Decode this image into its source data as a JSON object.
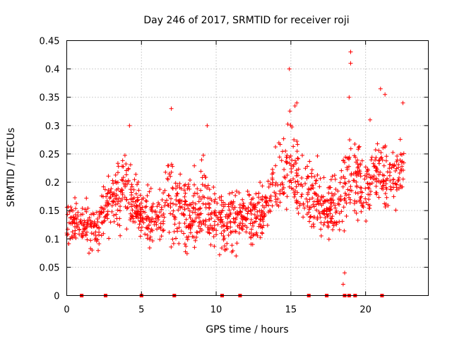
{
  "chart_data": {
    "type": "scatter",
    "title": "Day 246 of 2017, SRMTID for receiver roji",
    "xlabel": "GPS time / hours",
    "ylabel": "SRMTID / TECUs",
    "xlim": [
      0,
      24.2
    ],
    "ylim": [
      0,
      0.45
    ],
    "xticks": [
      0,
      5,
      10,
      15,
      20
    ],
    "yticks": [
      0,
      0.05,
      0.1,
      0.15,
      0.2,
      0.25,
      0.3,
      0.35,
      0.4,
      0.45
    ],
    "xtick_labels": [
      "0",
      "5",
      "10",
      "15",
      "20"
    ],
    "ytick_labels": [
      "0",
      "0.05",
      "0.1",
      "0.15",
      "0.2",
      "0.25",
      "0.3",
      "0.35",
      "0.4",
      "0.45"
    ],
    "grid": true,
    "marker": "+",
    "color": "#ff0000",
    "zero_markers_x": [
      1.0,
      2.6,
      5.0,
      7.2,
      10.4,
      11.6,
      16.2,
      17.4,
      18.6,
      18.9,
      19.3,
      21.1
    ],
    "envelope_hours": [
      0,
      1,
      2,
      3,
      4,
      5,
      6,
      7,
      8,
      9,
      10,
      11,
      12,
      13,
      14,
      15,
      16,
      17,
      18,
      19,
      20,
      21,
      22,
      22.6
    ],
    "envelope_low": [
      0.07,
      0.07,
      0.07,
      0.09,
      0.1,
      0.08,
      0.07,
      0.06,
      0.06,
      0.06,
      0.06,
      0.06,
      0.08,
      0.08,
      0.11,
      0.1,
      0.09,
      0.08,
      0.06,
      0.09,
      0.11,
      0.12,
      0.12,
      0.12
    ],
    "envelope_high": [
      0.19,
      0.17,
      0.17,
      0.25,
      0.27,
      0.21,
      0.2,
      0.29,
      0.22,
      0.26,
      0.21,
      0.2,
      0.2,
      0.22,
      0.28,
      0.37,
      0.27,
      0.24,
      0.25,
      0.34,
      0.27,
      0.32,
      0.28,
      0.33
    ],
    "peaks": [
      {
        "x": 4.2,
        "y": 0.3
      },
      {
        "x": 7.0,
        "y": 0.33
      },
      {
        "x": 9.4,
        "y": 0.3
      },
      {
        "x": 14.9,
        "y": 0.4
      },
      {
        "x": 15.4,
        "y": 0.34
      },
      {
        "x": 19.0,
        "y": 0.43
      },
      {
        "x": 19.0,
        "y": 0.41
      },
      {
        "x": 18.9,
        "y": 0.35
      },
      {
        "x": 21.0,
        "y": 0.365
      },
      {
        "x": 21.3,
        "y": 0.355
      },
      {
        "x": 22.5,
        "y": 0.34
      },
      {
        "x": 20.3,
        "y": 0.31
      },
      {
        "x": 18.5,
        "y": 0.02
      },
      {
        "x": 18.6,
        "y": 0.04
      }
    ],
    "point_count": 1400,
    "random_seed": 246
  }
}
